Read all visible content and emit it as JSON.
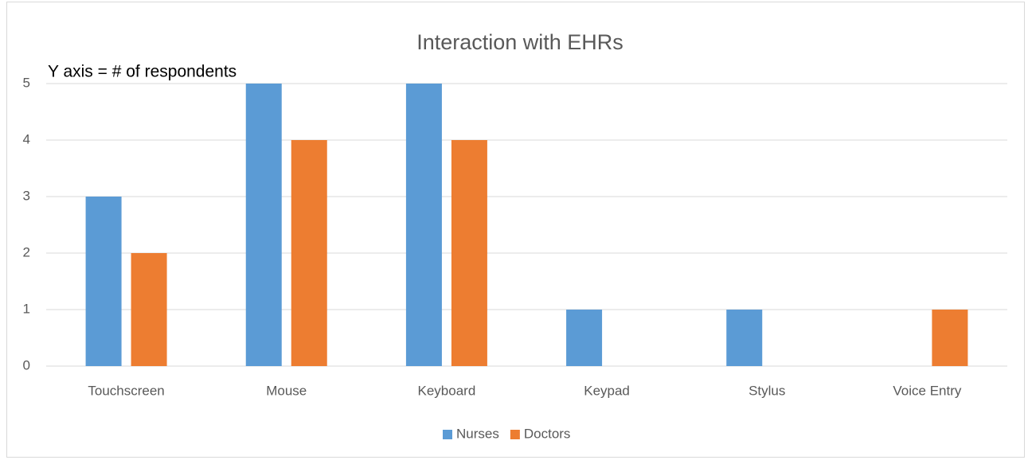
{
  "chart_data": {
    "type": "bar",
    "title": "Interaction with EHRs",
    "annotations": [
      "Y axis = # of respondents"
    ],
    "categories": [
      "Touchscreen",
      "Mouse",
      "Keyboard",
      "Keypad",
      "Stylus",
      "Voice Entry"
    ],
    "series": [
      {
        "name": "Nurses",
        "color": "#5b9bd5",
        "values": [
          3,
          5,
          5,
          1,
          1,
          0
        ]
      },
      {
        "name": "Doctors",
        "color": "#ed7d31",
        "values": [
          2,
          4,
          4,
          0,
          0,
          1
        ]
      }
    ],
    "ylim": [
      0,
      5
    ],
    "yticks": [
      0,
      1,
      2,
      3,
      4,
      5
    ],
    "grid": true,
    "legend": "bottom"
  }
}
